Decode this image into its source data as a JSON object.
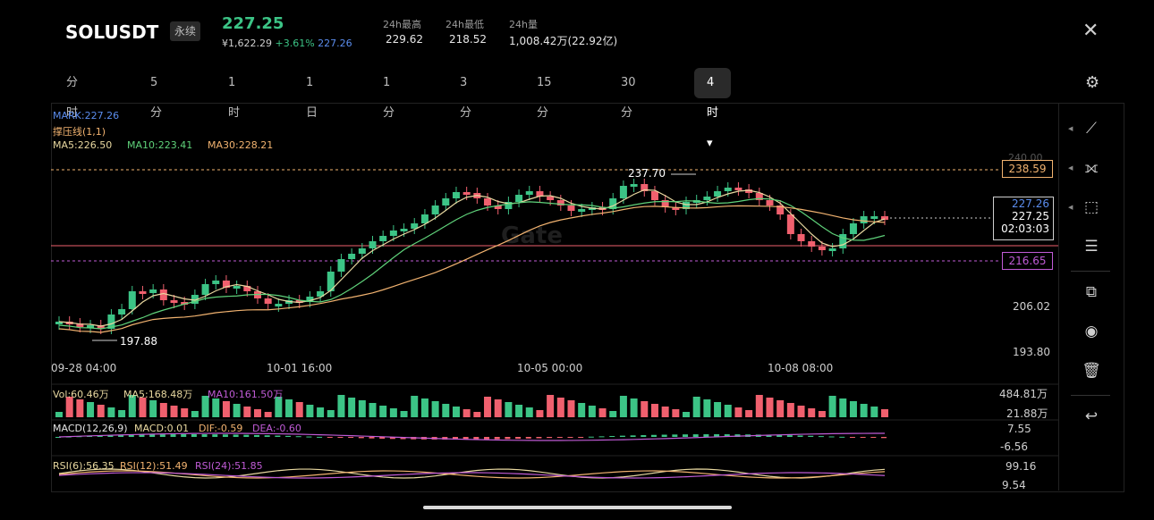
{
  "header": {
    "symbol": "SOLUSDT",
    "tag": "永续",
    "last_price": "227.25",
    "cny_price": "¥1,622.29",
    "change_pct": "+3.61%",
    "mark_price": "227.26",
    "stats": [
      {
        "label": "24h最高",
        "value": "229.62"
      },
      {
        "label": "24h最低",
        "value": "218.52"
      },
      {
        "label": "24h量",
        "value": "1,008.42万(22.92亿)"
      }
    ],
    "close_icon": "close-icon"
  },
  "tabs": [
    {
      "label": "分时"
    },
    {
      "label": "5分"
    },
    {
      "label": "1时"
    },
    {
      "label": "1日"
    },
    {
      "label": "1分"
    },
    {
      "label": "3分"
    },
    {
      "label": "15分"
    },
    {
      "label": "30分"
    },
    {
      "label": "4时 ▾",
      "active": true
    }
  ],
  "legend": {
    "mark": "MARK:227.26",
    "line": "撑压线(1,1)",
    "ma5": "MA5:226.50",
    "ma10": "MA10:223.41",
    "ma30": "MA30:228.21",
    "vol": "Vol:60.46万",
    "vol_ma5": "MA5:168.48万",
    "vol_ma10": "MA10:161.50万",
    "macd_title": "MACD(12,26,9)",
    "macd_val": "MACD:0.01",
    "dif": "DIF:-0.59",
    "dea": "DEA:-0.60",
    "rsi6": "RSI(6):56.35",
    "rsi12": "RSI(12):51.49",
    "rsi24": "RSI(24):51.85"
  },
  "price_axis": {
    "top_hidden": "240.00",
    "resistance": "238.59",
    "mark_box": "227.26",
    "last_box": "227.25",
    "countdown": "02:03:03",
    "support": "216.65",
    "t206": "206.02",
    "t193": "193.80"
  },
  "annotations": {
    "high": "237.70",
    "low": "197.88"
  },
  "time_axis": [
    "09-28 04:00",
    "10-01 16:00",
    "10-05 00:00",
    "10-08 08:00"
  ],
  "vol_axis": {
    "top": "484.81万",
    "bottom": "21.88万"
  },
  "macd_axis": {
    "top": "7.55",
    "bottom": "-6.56"
  },
  "rsi_axis": {
    "top": "99.16",
    "bottom": "9.54"
  },
  "watermark": "Gate",
  "colors": {
    "up": "#3cc486",
    "down": "#f0606e",
    "ma5": "#e8d8a0",
    "ma10": "#5fd27a",
    "ma30": "#f2b370",
    "mark": "#5b8dee",
    "purple": "#c05bd6"
  },
  "side_icons": [
    "draw-line-icon",
    "zigzag-icon",
    "shape-icon",
    "indicator-settings-icon",
    "toggle-icon",
    "visibility-icon",
    "delete-icon",
    "undo-icon"
  ]
}
